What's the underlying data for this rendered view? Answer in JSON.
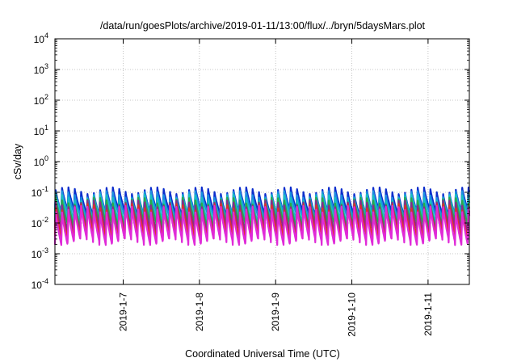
{
  "chart_data": {
    "type": "line",
    "title": "/data/run/goesPlots/archive/2019-01-11/13:00/flux/../bryn/5daysMars.plot",
    "xlabel": "Coordinated Universal Time (UTC)",
    "ylabel": "cSv/day",
    "y_scale": "log",
    "ylim": [
      0.0001,
      10000
    ],
    "y_ticks": [
      {
        "base": "10",
        "exp": "-4"
      },
      {
        "base": "10",
        "exp": "-3"
      },
      {
        "base": "10",
        "exp": "-2"
      },
      {
        "base": "10",
        "exp": "-1"
      },
      {
        "base": "10",
        "exp": "0"
      },
      {
        "base": "10",
        "exp": "1"
      },
      {
        "base": "10",
        "exp": "2"
      },
      {
        "base": "10",
        "exp": "3"
      },
      {
        "base": "10",
        "exp": "4"
      }
    ],
    "xlim": [
      "2019-01-06 02:30",
      "2019-01-11 13:00"
    ],
    "x_ticks": [
      "2019-1-7",
      "2019-1-8",
      "2019-1-9",
      "2019-1-10",
      "2019-1-11"
    ],
    "grid": true,
    "cycle_hours": 2,
    "series": [
      {
        "color": "#0b2dcc",
        "peak": 0.12,
        "trough": 0.022
      },
      {
        "color": "#1a8fe0",
        "peak": 0.09,
        "trough": 0.018
      },
      {
        "color": "#18c0c0",
        "peak": 0.07,
        "trough": 0.012
      },
      {
        "color": "#2aa84a",
        "peak": 0.055,
        "trough": 0.009
      },
      {
        "color": "#8a2a8a",
        "peak": 0.045,
        "trough": 0.006
      },
      {
        "color": "#e0302a",
        "peak": 0.035,
        "trough": 0.004
      },
      {
        "color": "#e02ad8",
        "peak": 0.03,
        "trough": 0.0025
      }
    ]
  }
}
